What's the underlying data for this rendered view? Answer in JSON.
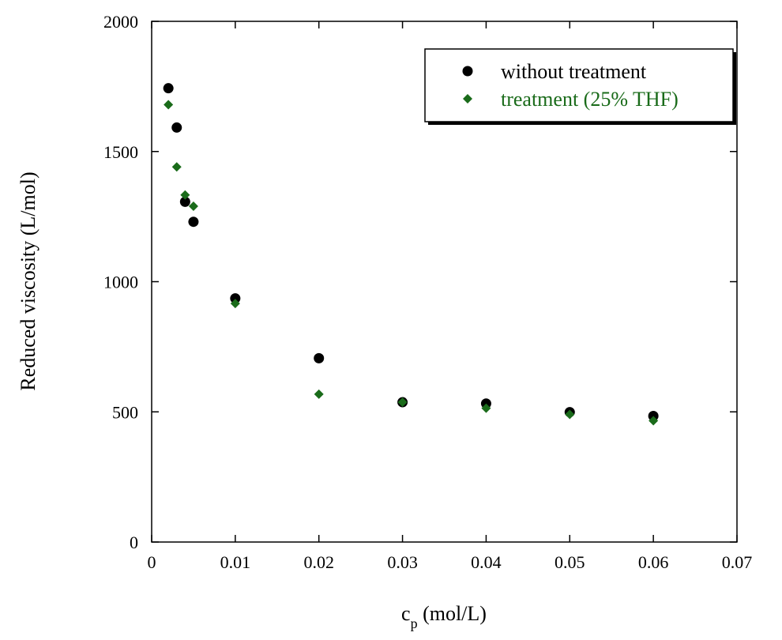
{
  "chart_data": {
    "type": "scatter",
    "title": "",
    "xlabel_main": "c",
    "xlabel_sub": "p",
    "xlabel_rest": " (mol/L)",
    "ylabel": "Reduced viscosity (L/mol)",
    "xlim": [
      0,
      0.07
    ],
    "ylim": [
      0,
      2000
    ],
    "x_ticks": [
      0,
      0.01,
      0.02,
      0.03,
      0.04,
      0.05,
      0.06,
      0.07
    ],
    "x_tick_labels": [
      "0",
      "0.01",
      "0.02",
      "0.03",
      "0.04",
      "0.05",
      "0.06",
      "0.07"
    ],
    "y_ticks": [
      0,
      500,
      1000,
      1500,
      2000
    ],
    "y_tick_labels": [
      "0",
      "500",
      "1000",
      "1500",
      "2000"
    ],
    "grid": false,
    "legend_position": "top-right",
    "series": [
      {
        "name": "without treatment",
        "marker": "circle",
        "color": "#000000",
        "points": [
          [
            0.002,
            1743
          ],
          [
            0.003,
            1592
          ],
          [
            0.004,
            1307
          ],
          [
            0.005,
            1230
          ],
          [
            0.01,
            936
          ],
          [
            0.02,
            706
          ],
          [
            0.03,
            537
          ],
          [
            0.04,
            532
          ],
          [
            0.05,
            499
          ],
          [
            0.06,
            484
          ]
        ]
      },
      {
        "name": "treatment (25% THF)",
        "marker": "diamond",
        "color": "#1a6b1a",
        "points": [
          [
            0.002,
            1680
          ],
          [
            0.003,
            1441
          ],
          [
            0.004,
            1333
          ],
          [
            0.005,
            1290
          ],
          [
            0.01,
            916
          ],
          [
            0.02,
            568
          ],
          [
            0.03,
            537
          ],
          [
            0.04,
            514
          ],
          [
            0.05,
            490
          ],
          [
            0.06,
            466
          ]
        ]
      }
    ]
  }
}
